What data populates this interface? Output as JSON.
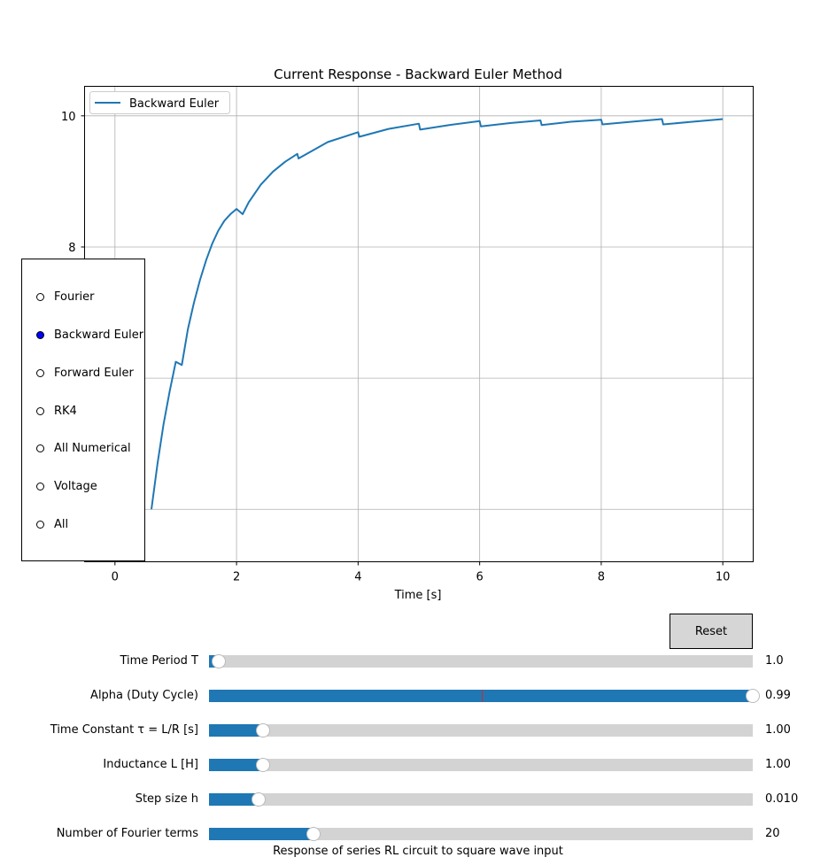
{
  "chart_data": {
    "type": "line",
    "title": "Current Response - Backward Euler Method",
    "xlabel": "Time [s]",
    "ylabel": "",
    "xlim": [
      -0.5,
      10.5
    ],
    "ylim": [
      3.2,
      10.45
    ],
    "xticks": [
      0,
      2,
      4,
      6,
      8,
      10
    ],
    "yticks": [
      8,
      10
    ],
    "y_grid": [
      4,
      6,
      8,
      10
    ],
    "grid": true,
    "legend_position": "upper-left",
    "series": [
      {
        "name": "Backward Euler",
        "color": "#1f77b4",
        "x": [
          0.6,
          0.7,
          0.8,
          0.9,
          1.0,
          1.1,
          1.2,
          1.3,
          1.4,
          1.5,
          1.6,
          1.7,
          1.8,
          1.9,
          2.0,
          2.1,
          2.2,
          2.4,
          2.6,
          2.8,
          3.0,
          3.02,
          3.5,
          4.0,
          4.02,
          4.5,
          5.0,
          5.02,
          5.5,
          6.0,
          6.02,
          6.5,
          7.0,
          7.02,
          7.5,
          8.0,
          8.02,
          8.5,
          9.0,
          9.02,
          9.5,
          10.0
        ],
        "y": [
          4.0,
          4.7,
          5.3,
          5.8,
          6.25,
          6.2,
          6.75,
          7.15,
          7.5,
          7.8,
          8.05,
          8.25,
          8.4,
          8.5,
          8.58,
          8.5,
          8.68,
          8.95,
          9.15,
          9.3,
          9.42,
          9.35,
          9.6,
          9.75,
          9.68,
          9.8,
          9.88,
          9.79,
          9.86,
          9.92,
          9.84,
          9.89,
          9.93,
          9.86,
          9.91,
          9.94,
          9.87,
          9.91,
          9.95,
          9.87,
          9.91,
          9.95
        ]
      }
    ]
  },
  "radio": {
    "options": [
      "Fourier",
      "Backward Euler",
      "Forward Euler",
      "RK4",
      "All Numerical",
      "Voltage",
      "All"
    ],
    "selected": 1,
    "active_color": "#0000ff"
  },
  "reset_label": "Reset",
  "sliders": [
    {
      "label": "Time Period T",
      "value": "1.0",
      "fraction": 0.018
    },
    {
      "label": "Alpha (Duty Cycle)",
      "value": "0.99",
      "fraction": 1.0,
      "init_fraction": 0.501
    },
    {
      "label": "Time Constant τ = L/R [s]",
      "value": "1.00",
      "fraction": 0.099
    },
    {
      "label": "Inductance L [H]",
      "value": "1.00",
      "fraction": 0.099
    },
    {
      "label": "Step size h",
      "value": "0.010",
      "fraction": 0.091
    },
    {
      "label": "Number of Fourier terms",
      "value": "20",
      "fraction": 0.192
    }
  ],
  "caption": "Response of series RL circuit to square wave input"
}
